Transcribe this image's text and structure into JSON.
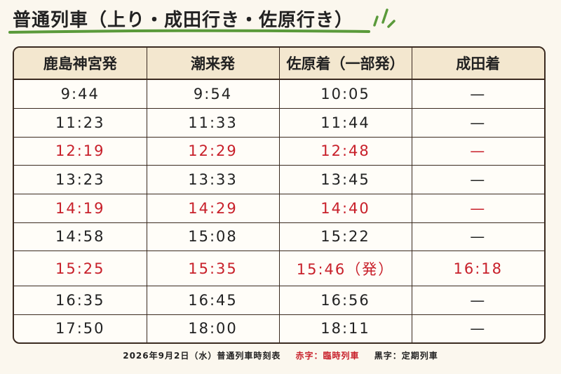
{
  "header": {
    "title": "普通列車（上り・成田行き・佐原行き）"
  },
  "table": {
    "columns": [
      "鹿島神宮発",
      "潮来発",
      "佐原着（一部発）",
      "成田着"
    ],
    "rows": [
      {
        "color": "#222222",
        "cells": [
          "9:44",
          "9:54",
          "10:05",
          "—"
        ]
      },
      {
        "color": "#222222",
        "cells": [
          "11:23",
          "11:33",
          "11:44",
          "—"
        ]
      },
      {
        "color": "#c8202a",
        "cells": [
          "12:19",
          "12:29",
          "12:48",
          "—"
        ]
      },
      {
        "color": "#222222",
        "cells": [
          "13:23",
          "13:33",
          "13:45",
          "—"
        ]
      },
      {
        "color": "#c8202a",
        "cells": [
          "14:19",
          "14:29",
          "14:40",
          "—"
        ]
      },
      {
        "color": "#222222",
        "cells": [
          "14:58",
          "15:08",
          "15:22",
          "—"
        ]
      },
      {
        "color": "#c8202a",
        "cells": [
          "15:25",
          "15:35",
          "15:46（発）",
          "16:18"
        ]
      },
      {
        "color": "#222222",
        "cells": [
          "16:35",
          "16:45",
          "16:56",
          "—"
        ]
      },
      {
        "color": "#222222",
        "cells": [
          "17:50",
          "18:00",
          "18:11",
          "—"
        ]
      }
    ]
  },
  "footer": {
    "caption": "2026年9月2日（水）普通列車時刻表",
    "legend_red": "赤字：臨時列車",
    "legend_black": "黒字：定期列車",
    "red_color": "#c8202a"
  }
}
